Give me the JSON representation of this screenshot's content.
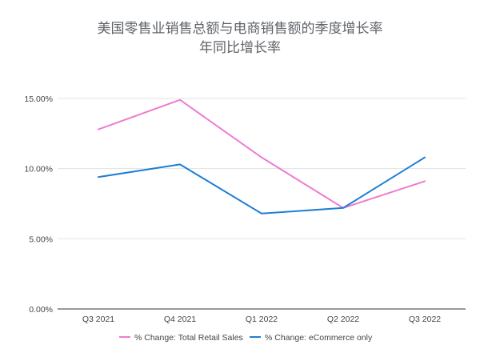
{
  "chart_data": {
    "type": "line",
    "title": "美国零售业销售总额与电商销售额的季度增长率",
    "subtitle": "年同比增长率",
    "categories": [
      "Q3 2021",
      "Q4 2021",
      "Q1 2022",
      "Q2 2022",
      "Q3 2022"
    ],
    "series": [
      {
        "name": "% Change: Total Retail Sales",
        "values": [
          12.8,
          14.9,
          10.8,
          7.2,
          9.1
        ],
        "color": "#ee7bd0"
      },
      {
        "name": "% Change: eCommerce only",
        "values": [
          9.4,
          10.3,
          6.8,
          7.2,
          10.8
        ],
        "color": "#1e7fd6"
      }
    ],
    "yticks": [
      "0.00%",
      "5.00%",
      "10.00%",
      "15.00%"
    ],
    "ylim": [
      0,
      15
    ],
    "grid": true,
    "legend_position": "bottom"
  }
}
